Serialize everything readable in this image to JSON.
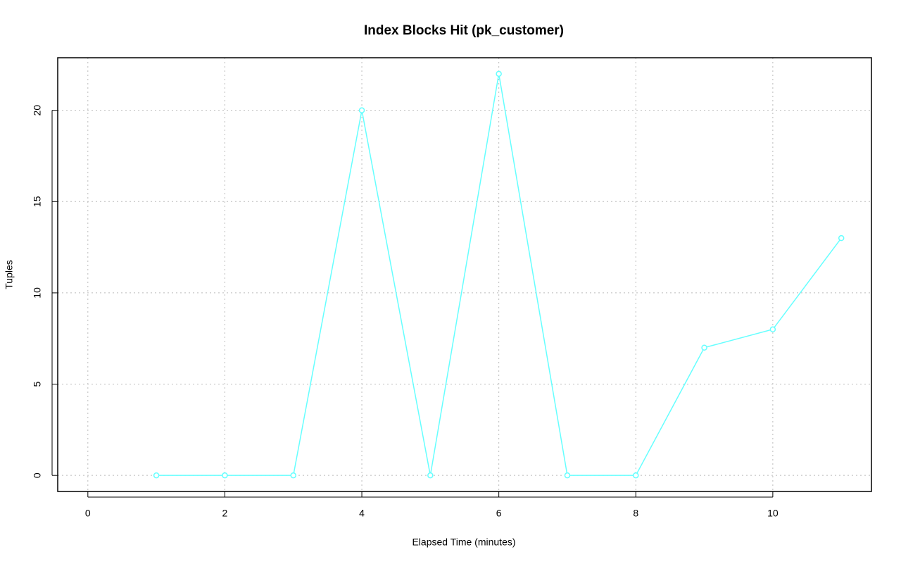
{
  "chart_data": {
    "type": "line",
    "title": "Index Blocks Hit (pk_customer)",
    "x_label": "Elapsed Time (minutes)",
    "y_label": "Tuples",
    "x": [
      1,
      2,
      3,
      4,
      5,
      6,
      7,
      8,
      9,
      10,
      11
    ],
    "series": [
      {
        "name": "pk_customer",
        "color": "#66ffff",
        "values": [
          0,
          0,
          0,
          20,
          0,
          22,
          0,
          0,
          7,
          8,
          13
        ]
      }
    ],
    "xlim": [
      -0.44,
      11.44
    ],
    "ylim": [
      -0.88,
      22.88
    ],
    "xticks": [
      0,
      2,
      4,
      6,
      8,
      10
    ],
    "yticks": [
      0,
      5,
      10,
      15,
      20
    ],
    "grid": true
  }
}
